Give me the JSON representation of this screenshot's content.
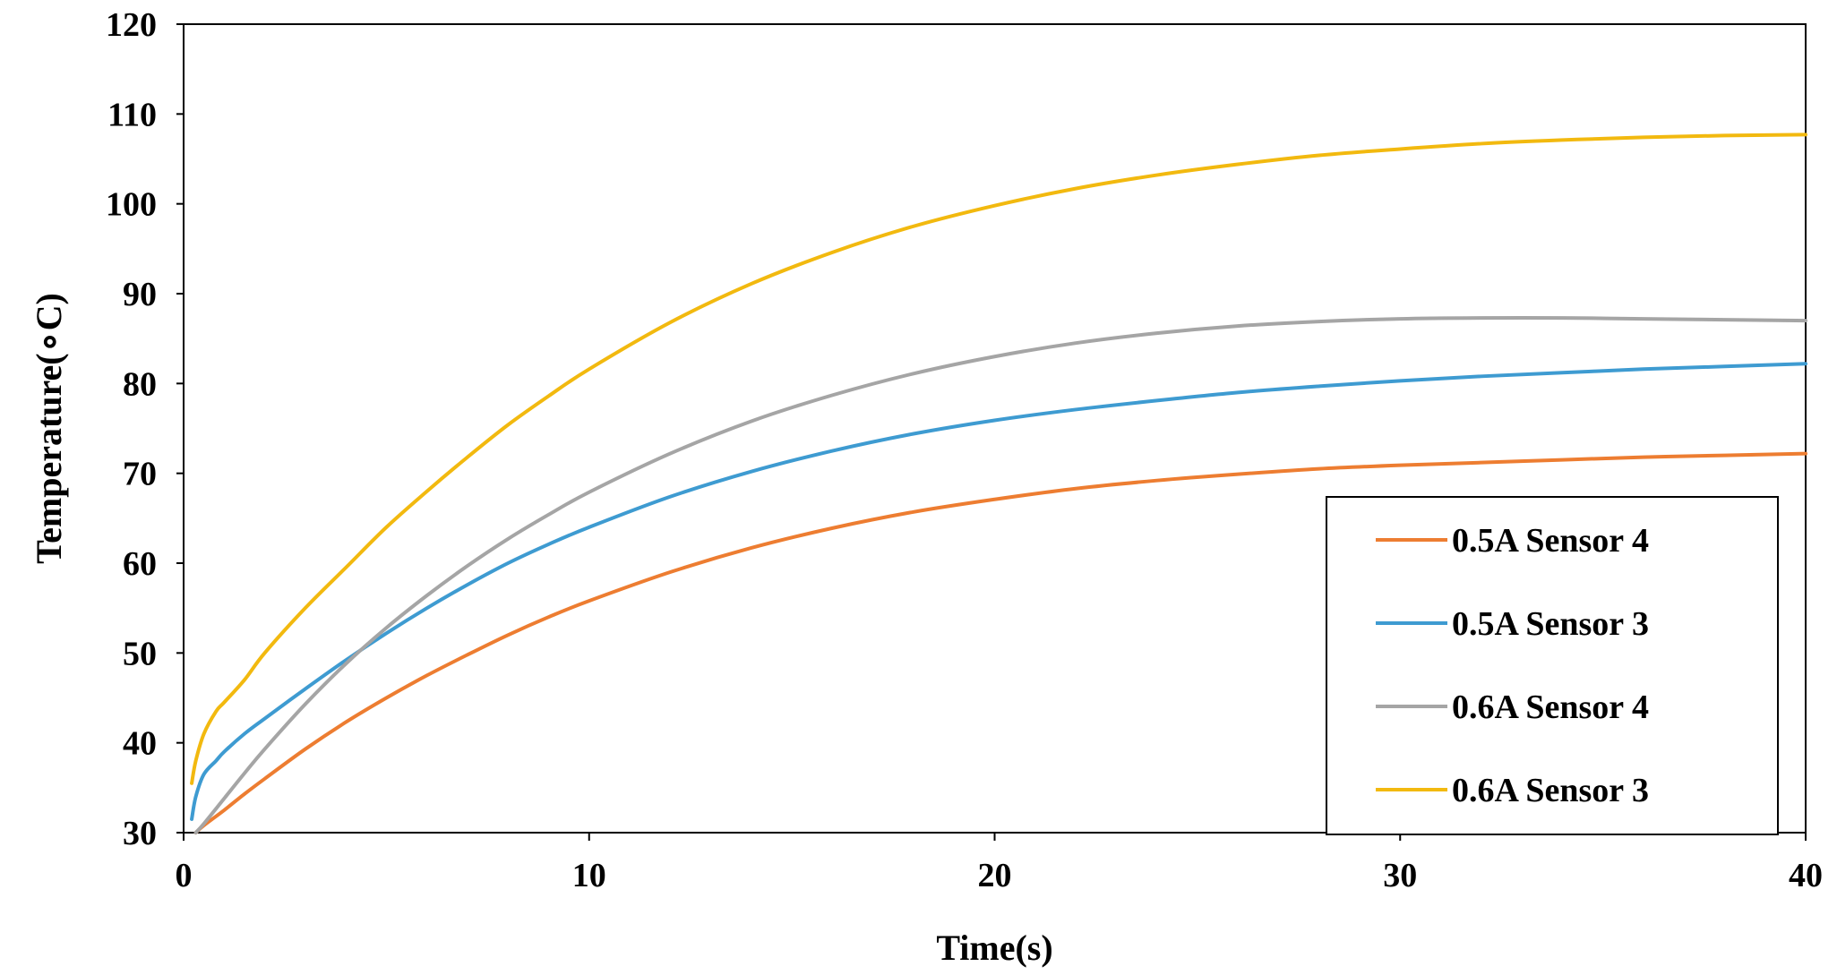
{
  "chart_data": {
    "type": "line",
    "title": "",
    "xlabel": "Time(s)",
    "ylabel": "Temperature(∘C)",
    "xlim": [
      0,
      40
    ],
    "ylim": [
      30,
      120
    ],
    "xticks": [
      0,
      10,
      20,
      30,
      40
    ],
    "yticks": [
      30,
      40,
      50,
      60,
      70,
      80,
      90,
      100,
      110,
      120
    ],
    "grid": false,
    "legend_position": "bottom-right",
    "series": [
      {
        "name": "0.5A Sensor 4",
        "color": "#ED7D31",
        "x": [
          0.3,
          0.5,
          1,
          1.5,
          2,
          3,
          4,
          5,
          6,
          7,
          8,
          9,
          10,
          12,
          14,
          16,
          18,
          20,
          22,
          24,
          26,
          28,
          30,
          32,
          34,
          36,
          38,
          40
        ],
        "y": [
          30,
          30.8,
          32.5,
          34.3,
          36,
          39.3,
          42.3,
          45,
          47.5,
          49.8,
          52,
          54,
          55.8,
          59,
          61.7,
          63.9,
          65.7,
          67.1,
          68.3,
          69.2,
          69.9,
          70.5,
          70.9,
          71.2,
          71.5,
          71.8,
          72,
          72.2
        ]
      },
      {
        "name": "0.5A Sensor 3",
        "color": "#3E9BD1",
        "x": [
          0.2,
          0.3,
          0.5,
          0.8,
          1,
          1.5,
          2,
          3,
          4,
          5,
          6,
          7,
          8,
          9,
          10,
          12,
          14,
          16,
          18,
          20,
          22,
          24,
          26,
          28,
          30,
          32,
          34,
          36,
          38,
          40
        ],
        "y": [
          31.5,
          34,
          36.5,
          38,
          39,
          41,
          42.7,
          46,
          49.2,
          52.2,
          55,
          57.6,
          60,
          62.1,
          64,
          67.4,
          70.2,
          72.5,
          74.4,
          75.9,
          77.1,
          78.1,
          79,
          79.7,
          80.3,
          80.8,
          81.2,
          81.6,
          81.9,
          82.2
        ]
      },
      {
        "name": "0.6A Sensor 4",
        "color": "#A5A5A5",
        "x": [
          0.3,
          0.5,
          1,
          1.5,
          2,
          3,
          4,
          5,
          6,
          7,
          8,
          9,
          10,
          12,
          14,
          16,
          18,
          20,
          22,
          24,
          26,
          28,
          30,
          32,
          34,
          36,
          38,
          40
        ],
        "y": [
          30,
          31,
          33.8,
          36.6,
          39.3,
          44.3,
          48.8,
          52.8,
          56.4,
          59.7,
          62.7,
          65.4,
          67.9,
          72.2,
          75.8,
          78.7,
          81.1,
          83,
          84.5,
          85.6,
          86.4,
          86.9,
          87.2,
          87.3,
          87.3,
          87.2,
          87.1,
          87
        ]
      },
      {
        "name": "0.6A Sensor  3",
        "color": "#F2B90F",
        "x": [
          0.2,
          0.3,
          0.5,
          0.8,
          1,
          1.5,
          2,
          3,
          4,
          5,
          6,
          7,
          8,
          9,
          10,
          12,
          14,
          16,
          18,
          20,
          22,
          24,
          26,
          28,
          30,
          32,
          34,
          36,
          38,
          40
        ],
        "y": [
          35.5,
          38,
          41,
          43.5,
          44.5,
          47,
          50,
          55,
          59.5,
          64,
          68,
          71.8,
          75.4,
          78.6,
          81.6,
          86.8,
          91.1,
          94.6,
          97.5,
          99.8,
          101.7,
          103.2,
          104.4,
          105.4,
          106.1,
          106.7,
          107.1,
          107.4,
          107.6,
          107.7
        ]
      }
    ]
  }
}
